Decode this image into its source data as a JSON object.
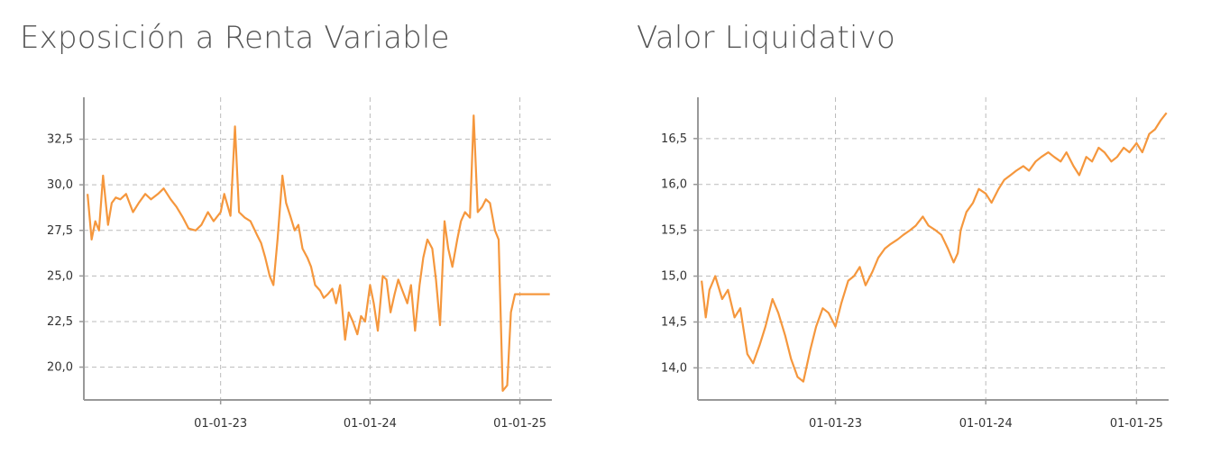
{
  "panels": {
    "left": {
      "title": "Exposición a Renta Variable"
    },
    "right": {
      "title": "Valor Liquidativo"
    }
  },
  "colors": {
    "series": "#F5973D",
    "axis": "#999999",
    "grid": "#BBBBBB",
    "text": "#333333"
  },
  "chart_data": [
    {
      "type": "line",
      "title": "Exposición a Renta Variable",
      "xlabel": "",
      "ylabel": "",
      "xlim": [
        "2022-02-01",
        "2025-03-20"
      ],
      "ylim": [
        18.2,
        34.8
      ],
      "x_ticks": [
        "2023-01-01",
        "2024-01-01",
        "2025-01-01"
      ],
      "x_tick_labels": [
        "01-01-23",
        "01-01-24",
        "01-01-25"
      ],
      "y_ticks": [
        20.0,
        22.5,
        25.0,
        27.5,
        30.0,
        32.5
      ],
      "y_tick_labels": [
        "20,0",
        "22,5",
        "25,0",
        "27,5",
        "30,0",
        "32,5"
      ],
      "grid": true,
      "series": [
        {
          "x": [
            "2022-02-10",
            "2022-02-20",
            "2022-03-01",
            "2022-03-10",
            "2022-03-20",
            "2022-04-01",
            "2022-04-10",
            "2022-04-20",
            "2022-05-01",
            "2022-05-15",
            "2022-06-01",
            "2022-06-15",
            "2022-07-01",
            "2022-07-15",
            "2022-08-01",
            "2022-08-15",
            "2022-09-01",
            "2022-09-15",
            "2022-10-01",
            "2022-10-15",
            "2022-11-01",
            "2022-11-15",
            "2022-12-01",
            "2022-12-15",
            "2023-01-01",
            "2023-01-10",
            "2023-01-25",
            "2023-02-05",
            "2023-02-15",
            "2023-03-01",
            "2023-03-15",
            "2023-04-01",
            "2023-04-10",
            "2023-04-20",
            "2023-05-01",
            "2023-05-10",
            "2023-05-20",
            "2023-06-01",
            "2023-06-10",
            "2023-06-20",
            "2023-07-01",
            "2023-07-10",
            "2023-07-20",
            "2023-08-01",
            "2023-08-10",
            "2023-08-20",
            "2023-09-01",
            "2023-09-10",
            "2023-09-20",
            "2023-10-01",
            "2023-10-10",
            "2023-10-20",
            "2023-11-01",
            "2023-11-10",
            "2023-11-20",
            "2023-12-01",
            "2023-12-10",
            "2023-12-20",
            "2024-01-01",
            "2024-01-10",
            "2024-01-20",
            "2024-02-01",
            "2024-02-10",
            "2024-02-20",
            "2024-03-01",
            "2024-03-10",
            "2024-03-20",
            "2024-04-01",
            "2024-04-10",
            "2024-04-20",
            "2024-05-01",
            "2024-05-10",
            "2024-05-20",
            "2024-06-01",
            "2024-06-10",
            "2024-06-20",
            "2024-07-01",
            "2024-07-10",
            "2024-07-20",
            "2024-08-01",
            "2024-08-10",
            "2024-08-20",
            "2024-09-01",
            "2024-09-10",
            "2024-09-20",
            "2024-10-01",
            "2024-10-10",
            "2024-10-20",
            "2024-11-01",
            "2024-11-10",
            "2024-11-20",
            "2024-12-01",
            "2024-12-10",
            "2024-12-20",
            "2025-01-01",
            "2025-01-10",
            "2025-01-20",
            "2025-02-01",
            "2025-02-10",
            "2025-02-20",
            "2025-03-01",
            "2025-03-10",
            "2025-03-15"
          ],
          "y": [
            29.5,
            27.0,
            28.0,
            27.5,
            30.5,
            27.8,
            29.0,
            29.3,
            29.2,
            29.5,
            28.5,
            29.0,
            29.5,
            29.2,
            29.5,
            29.8,
            29.2,
            28.8,
            28.2,
            27.6,
            27.5,
            27.8,
            28.5,
            28.0,
            28.5,
            29.5,
            28.3,
            33.2,
            28.5,
            28.2,
            28.0,
            27.2,
            26.8,
            26.0,
            25.0,
            24.5,
            27.0,
            30.5,
            29.0,
            28.3,
            27.5,
            27.8,
            26.5,
            26.0,
            25.5,
            24.5,
            24.2,
            23.8,
            24.0,
            24.3,
            23.5,
            24.5,
            21.5,
            23.0,
            22.5,
            21.8,
            22.8,
            22.5,
            24.5,
            23.5,
            22.0,
            25.0,
            24.8,
            23.0,
            24.0,
            24.8,
            24.2,
            23.5,
            24.5,
            22.0,
            24.5,
            26.0,
            27.0,
            26.5,
            24.8,
            22.3,
            28.0,
            26.5,
            25.5,
            27.0,
            28.0,
            28.5,
            28.2,
            33.8,
            28.5,
            28.8,
            29.2,
            29.0,
            27.5,
            27.0,
            18.7,
            19.0,
            23.0,
            24.0,
            24.0,
            24.0,
            24.0,
            24.0,
            24.0,
            24.0,
            24.0,
            24.0,
            24.0
          ],
          "note": ""
        }
      ]
    },
    {
      "type": "line",
      "title": "Valor Liquidativo",
      "xlabel": "",
      "ylabel": "",
      "xlim": [
        "2022-02-01",
        "2025-03-20"
      ],
      "ylim": [
        13.65,
        16.95
      ],
      "x_ticks": [
        "2023-01-01",
        "2024-01-01",
        "2025-01-01"
      ],
      "x_tick_labels": [
        "01-01-23",
        "01-01-24",
        "01-01-25"
      ],
      "y_ticks": [
        14.0,
        14.5,
        15.0,
        15.5,
        16.0,
        16.5
      ],
      "y_tick_labels": [
        "14,0",
        "14,5",
        "15,0",
        "15,5",
        "16,0",
        "16,5"
      ],
      "grid": true,
      "series": [
        {
          "x": [
            "2022-02-10",
            "2022-02-20",
            "2022-03-01",
            "2022-03-15",
            "2022-04-01",
            "2022-04-15",
            "2022-05-01",
            "2022-05-15",
            "2022-06-01",
            "2022-06-15",
            "2022-07-01",
            "2022-07-15",
            "2022-08-01",
            "2022-08-15",
            "2022-09-01",
            "2022-09-15",
            "2022-10-01",
            "2022-10-15",
            "2022-11-01",
            "2022-11-15",
            "2022-12-01",
            "2022-12-15",
            "2023-01-01",
            "2023-01-15",
            "2023-02-01",
            "2023-02-15",
            "2023-03-01",
            "2023-03-15",
            "2023-04-01",
            "2023-04-15",
            "2023-05-01",
            "2023-05-15",
            "2023-06-01",
            "2023-06-15",
            "2023-07-01",
            "2023-07-15",
            "2023-08-01",
            "2023-08-15",
            "2023-09-01",
            "2023-09-15",
            "2023-10-01",
            "2023-10-15",
            "2023-10-25",
            "2023-11-01",
            "2023-11-15",
            "2023-12-01",
            "2023-12-15",
            "2024-01-01",
            "2024-01-15",
            "2024-02-01",
            "2024-02-15",
            "2024-03-01",
            "2024-03-15",
            "2024-04-01",
            "2024-04-15",
            "2024-05-01",
            "2024-05-15",
            "2024-06-01",
            "2024-06-15",
            "2024-07-01",
            "2024-07-15",
            "2024-08-01",
            "2024-08-15",
            "2024-09-01",
            "2024-09-15",
            "2024-10-01",
            "2024-10-15",
            "2024-11-01",
            "2024-11-15",
            "2024-12-01",
            "2024-12-15",
            "2025-01-01",
            "2025-01-15",
            "2025-02-01",
            "2025-02-15",
            "2025-03-01",
            "2025-03-15"
          ],
          "y": [
            14.95,
            14.55,
            14.85,
            15.0,
            14.75,
            14.85,
            14.55,
            14.65,
            14.15,
            14.05,
            14.25,
            14.45,
            14.75,
            14.6,
            14.35,
            14.1,
            13.9,
            13.85,
            14.2,
            14.45,
            14.65,
            14.6,
            14.45,
            14.7,
            14.95,
            15.0,
            15.1,
            14.9,
            15.05,
            15.2,
            15.3,
            15.35,
            15.4,
            15.45,
            15.5,
            15.55,
            15.65,
            15.55,
            15.5,
            15.45,
            15.3,
            15.15,
            15.25,
            15.5,
            15.7,
            15.8,
            15.95,
            15.9,
            15.8,
            15.95,
            16.05,
            16.1,
            16.15,
            16.2,
            16.15,
            16.25,
            16.3,
            16.35,
            16.3,
            16.25,
            16.35,
            16.2,
            16.1,
            16.3,
            16.25,
            16.4,
            16.35,
            16.25,
            16.3,
            16.4,
            16.35,
            16.45,
            16.35,
            16.55,
            16.6,
            16.7,
            16.78
          ],
          "note": ""
        }
      ]
    }
  ]
}
